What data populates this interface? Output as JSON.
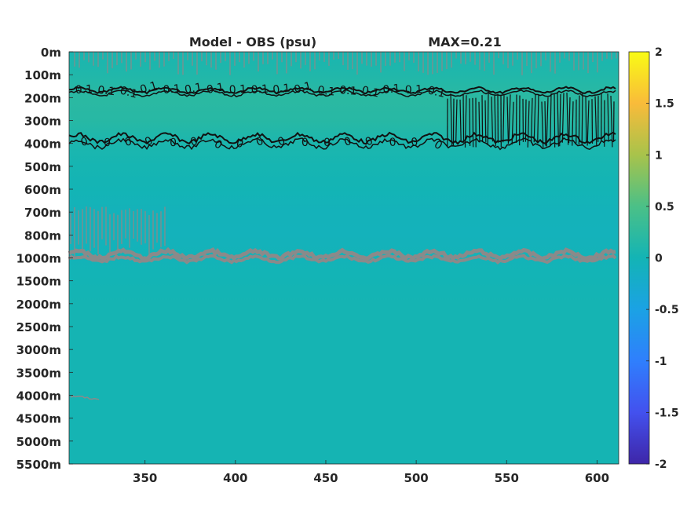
{
  "chart_data": {
    "type": "heatmap",
    "title": "Model - OBS (psu)",
    "annotation": "MAX=0.21",
    "xlabel": "",
    "ylabel": "",
    "x_ticks": [
      350,
      400,
      450,
      500,
      550,
      600
    ],
    "xlim": [
      308,
      612
    ],
    "y_ticks": [
      "0m",
      "100m",
      "200m",
      "300m",
      "400m",
      "500m",
      "600m",
      "700m",
      "800m",
      "1000m",
      "1500m",
      "2000m",
      "2500m",
      "3000m",
      "3500m",
      "4000m",
      "4500m",
      "5000m",
      "5500m"
    ],
    "colorbar": {
      "ticks": [
        "-2",
        "-1.5",
        "-1",
        "-0.5",
        "0",
        "0.5",
        "1",
        "1.5",
        "2"
      ],
      "range": [
        -2,
        2
      ],
      "colormap": "parula"
    },
    "depth_profile": [
      {
        "depth": "0m",
        "value": 0.05
      },
      {
        "depth": "100m",
        "value": 0.12
      },
      {
        "depth": "200m",
        "value": 0.21
      },
      {
        "depth": "300m",
        "value": 0.18
      },
      {
        "depth": "400m",
        "value": 0.08
      },
      {
        "depth": "500m",
        "value": 0.03
      },
      {
        "depth": "600m",
        "value": 0.0
      },
      {
        "depth": "700m",
        "value": -0.05
      },
      {
        "depth": "800m",
        "value": -0.06
      },
      {
        "depth": "1000m",
        "value": -0.03
      },
      {
        "depth": "1500m",
        "value": 0.0
      },
      {
        "depth": "2000m",
        "value": 0.02
      },
      {
        "depth": "2500m",
        "value": 0.02
      },
      {
        "depth": "3000m",
        "value": 0.02
      },
      {
        "depth": "3500m",
        "value": 0.02
      },
      {
        "depth": "4000m",
        "value": 0.02
      },
      {
        "depth": "4500m",
        "value": 0.02
      },
      {
        "depth": "5000m",
        "value": 0.02
      },
      {
        "depth": "5500m",
        "value": 0.02
      }
    ],
    "contour_labels": [
      "0.1",
      "0"
    ],
    "grid": false
  },
  "colors": {
    "zero": "#12b0b2",
    "contour_dark": "#111111",
    "contour_gray": "#8a8a8a",
    "axis_text": "#262626"
  }
}
